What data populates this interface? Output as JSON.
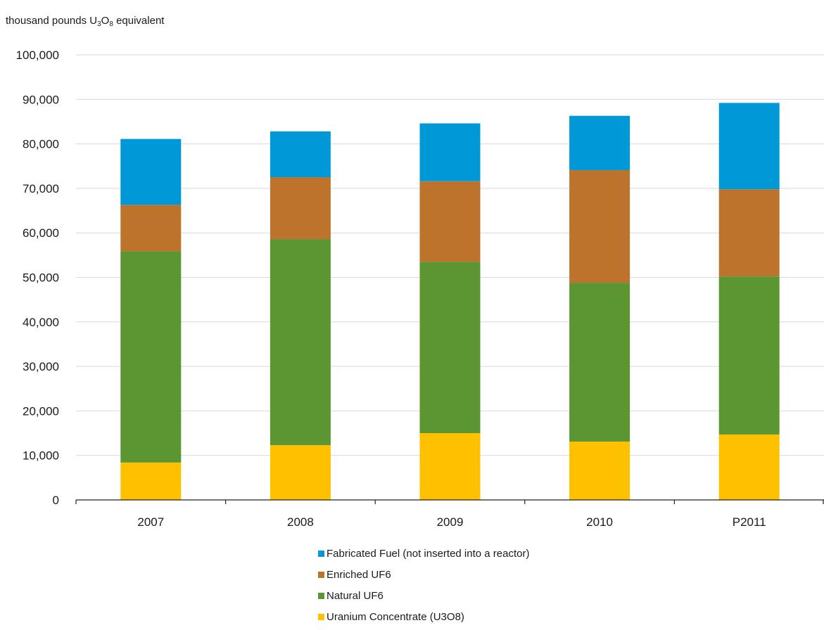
{
  "chart_data": {
    "type": "bar",
    "stacked": true,
    "title": "",
    "ylabel": "thousand pounds U3O8 equivalent",
    "ylabel_parts": {
      "a": "thousand pounds U",
      "sub1": "3",
      "b": "O",
      "sub2": "8",
      "c": " equivalent"
    },
    "xlabel": "",
    "ylim": [
      0,
      100000
    ],
    "yticks": [
      0,
      10000,
      20000,
      30000,
      40000,
      50000,
      60000,
      70000,
      80000,
      90000,
      100000
    ],
    "ytick_labels": [
      "0",
      "10,000",
      "20,000",
      "30,000",
      "40,000",
      "50,000",
      "60,000",
      "70,000",
      "80,000",
      "90,000",
      "100,000"
    ],
    "grid": true,
    "legend_position": "bottom",
    "categories": [
      "2007",
      "2008",
      "2009",
      "2010",
      "P2011"
    ],
    "series": [
      {
        "name": "Uranium Concentrate (U3O8)",
        "color": "#ffc000",
        "values": [
          8400,
          12300,
          15000,
          13100,
          14700
        ]
      },
      {
        "name": "Natural UF6",
        "color": "#5b9632",
        "values": [
          47500,
          46300,
          38500,
          35700,
          35500
        ]
      },
      {
        "name": "Enriched UF6",
        "color": "#bd732b",
        "values": [
          10400,
          13900,
          18100,
          25300,
          19600
        ]
      },
      {
        "name": "Fabricated Fuel (not inserted into a reactor)",
        "color": "#0198d8",
        "values": [
          14800,
          10300,
          13000,
          12200,
          19400
        ]
      }
    ],
    "legend_order": [
      3,
      2,
      1,
      0
    ]
  }
}
